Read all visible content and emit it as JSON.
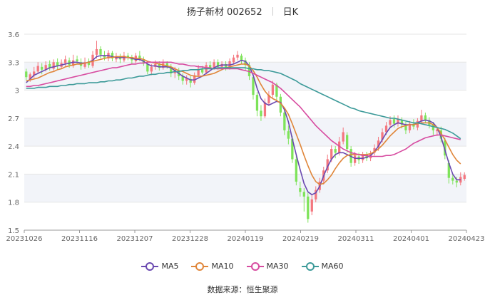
{
  "header": {
    "title": "扬子新材 002652",
    "period": "日K"
  },
  "source": "数据来源：恒生聚源",
  "colors": {
    "up": "#f4777f",
    "down": "#7ee35a",
    "band": "#f2f4f9",
    "grid": "#e6e6e6",
    "axis_text": "#666666"
  },
  "chart_data": {
    "type": "candlestick",
    "ylim": [
      1.5,
      3.6
    ],
    "yticks": [
      "1.5",
      "1.8",
      "2.1",
      "2.4",
      "2.7",
      "3",
      "3.3",
      "3.6"
    ],
    "xticks": [
      "20231026",
      "20231116",
      "20231207",
      "20231228",
      "20240119",
      "20240219",
      "20240311",
      "20240401",
      "20240423"
    ],
    "ohlc": [
      [
        3.2,
        3.14,
        3.23,
        3.11
      ],
      [
        3.12,
        3.17,
        3.19,
        3.09
      ],
      [
        3.16,
        3.2,
        3.25,
        3.13
      ],
      [
        3.2,
        3.26,
        3.3,
        3.18
      ],
      [
        3.25,
        3.22,
        3.29,
        3.17
      ],
      [
        3.22,
        3.27,
        3.31,
        3.2
      ],
      [
        3.28,
        3.24,
        3.32,
        3.21
      ],
      [
        3.23,
        3.3,
        3.33,
        3.21
      ],
      [
        3.3,
        3.26,
        3.34,
        3.22
      ],
      [
        3.25,
        3.29,
        3.33,
        3.23
      ],
      [
        3.29,
        3.33,
        3.37,
        3.26
      ],
      [
        3.32,
        3.27,
        3.35,
        3.24
      ],
      [
        3.26,
        3.32,
        3.38,
        3.24
      ],
      [
        3.33,
        3.31,
        3.37,
        3.28
      ],
      [
        3.3,
        3.26,
        3.34,
        3.22
      ],
      [
        3.25,
        3.3,
        3.35,
        3.23
      ],
      [
        3.31,
        3.27,
        3.34,
        3.24
      ],
      [
        3.26,
        3.38,
        3.42,
        3.24
      ],
      [
        3.38,
        3.44,
        3.53,
        3.34
      ],
      [
        3.44,
        3.38,
        3.47,
        3.34
      ],
      [
        3.37,
        3.35,
        3.42,
        3.32
      ],
      [
        3.34,
        3.4,
        3.43,
        3.31
      ],
      [
        3.4,
        3.34,
        3.42,
        3.31
      ],
      [
        3.33,
        3.36,
        3.4,
        3.3
      ],
      [
        3.36,
        3.33,
        3.39,
        3.29
      ],
      [
        3.32,
        3.37,
        3.41,
        3.3
      ],
      [
        3.37,
        3.35,
        3.4,
        3.32
      ],
      [
        3.34,
        3.32,
        3.38,
        3.28
      ],
      [
        3.31,
        3.37,
        3.4,
        3.29
      ],
      [
        3.37,
        3.34,
        3.42,
        3.31
      ],
      [
        3.33,
        3.29,
        3.36,
        3.26
      ],
      [
        3.28,
        3.2,
        3.31,
        3.17
      ],
      [
        3.2,
        3.25,
        3.28,
        3.16
      ],
      [
        3.25,
        3.28,
        3.32,
        3.22
      ],
      [
        3.28,
        3.24,
        3.31,
        3.21
      ],
      [
        3.24,
        3.29,
        3.33,
        3.22
      ],
      [
        3.29,
        3.26,
        3.31,
        3.23
      ],
      [
        3.25,
        3.18,
        3.28,
        3.14
      ],
      [
        3.18,
        3.22,
        3.25,
        3.13
      ],
      [
        3.21,
        3.15,
        3.24,
        3.11
      ],
      [
        3.15,
        3.1,
        3.18,
        3.06
      ],
      [
        3.1,
        3.13,
        3.16,
        3.06
      ],
      [
        3.12,
        3.08,
        3.15,
        3.03
      ],
      [
        3.08,
        3.16,
        3.19,
        3.06
      ],
      [
        3.16,
        3.23,
        3.27,
        3.14
      ],
      [
        3.23,
        3.19,
        3.26,
        3.17
      ],
      [
        3.19,
        3.27,
        3.3,
        3.17
      ],
      [
        3.27,
        3.24,
        3.31,
        3.22
      ],
      [
        3.24,
        3.3,
        3.33,
        3.22
      ],
      [
        3.3,
        3.25,
        3.33,
        3.22
      ],
      [
        3.25,
        3.28,
        3.31,
        3.23
      ],
      [
        3.28,
        3.24,
        3.31,
        3.21
      ],
      [
        3.24,
        3.31,
        3.34,
        3.22
      ],
      [
        3.3,
        3.35,
        3.38,
        3.28
      ],
      [
        3.35,
        3.38,
        3.42,
        3.32
      ],
      [
        3.37,
        3.32,
        3.39,
        3.28
      ],
      [
        3.32,
        3.27,
        3.35,
        3.21
      ],
      [
        3.27,
        3.15,
        3.3,
        3.11
      ],
      [
        3.14,
        2.95,
        3.17,
        2.9
      ],
      [
        2.95,
        2.78,
        2.98,
        2.72
      ],
      [
        2.78,
        2.72,
        2.84,
        2.67
      ],
      [
        2.72,
        2.87,
        2.91,
        2.7
      ],
      [
        2.86,
        2.95,
        2.99,
        2.83
      ],
      [
        2.95,
        3.06,
        3.1,
        2.92
      ],
      [
        3.06,
        2.93,
        3.08,
        2.89
      ],
      [
        2.93,
        2.76,
        2.96,
        2.72
      ],
      [
        2.76,
        2.57,
        2.8,
        2.52
      ],
      [
        2.56,
        2.48,
        2.62,
        2.42
      ],
      [
        2.48,
        2.26,
        2.51,
        2.22
      ],
      [
        2.26,
        2.02,
        2.3,
        1.98
      ],
      [
        1.95,
        1.91,
        2.02,
        1.86
      ],
      [
        1.91,
        1.86,
        1.95,
        1.7
      ],
      [
        1.86,
        1.62,
        1.9,
        1.58
      ],
      [
        1.7,
        1.83,
        1.88,
        1.66
      ],
      [
        1.83,
        1.93,
        1.97,
        1.8
      ],
      [
        1.93,
        2.02,
        2.06,
        1.9
      ],
      [
        2.03,
        2.14,
        2.18,
        1.99
      ],
      [
        2.14,
        2.26,
        2.31,
        2.11
      ],
      [
        2.26,
        2.37,
        2.41,
        2.23
      ],
      [
        2.37,
        2.33,
        2.4,
        2.27
      ],
      [
        2.33,
        2.45,
        2.5,
        2.3
      ],
      [
        2.45,
        2.55,
        2.6,
        2.42
      ],
      [
        2.52,
        2.37,
        2.55,
        2.33
      ],
      [
        2.37,
        2.22,
        2.4,
        2.18
      ],
      [
        2.22,
        2.3,
        2.34,
        2.19
      ],
      [
        2.29,
        2.25,
        2.33,
        2.21
      ],
      [
        2.25,
        2.31,
        2.34,
        2.22
      ],
      [
        2.31,
        2.27,
        2.34,
        2.24
      ],
      [
        2.27,
        2.32,
        2.35,
        2.24
      ],
      [
        2.33,
        2.38,
        2.42,
        2.3
      ],
      [
        2.39,
        2.46,
        2.5,
        2.35
      ],
      [
        2.47,
        2.55,
        2.59,
        2.44
      ],
      [
        2.55,
        2.62,
        2.66,
        2.52
      ],
      [
        2.63,
        2.68,
        2.72,
        2.6
      ],
      [
        2.69,
        2.64,
        2.73,
        2.6
      ],
      [
        2.64,
        2.69,
        2.73,
        2.61
      ],
      [
        2.68,
        2.63,
        2.71,
        2.59
      ],
      [
        2.63,
        2.57,
        2.66,
        2.53
      ],
      [
        2.57,
        2.64,
        2.67,
        2.54
      ],
      [
        2.64,
        2.61,
        2.69,
        2.58
      ],
      [
        2.6,
        2.67,
        2.7,
        2.57
      ],
      [
        2.67,
        2.73,
        2.79,
        2.64
      ],
      [
        2.73,
        2.68,
        2.76,
        2.65
      ],
      [
        2.68,
        2.63,
        2.71,
        2.59
      ],
      [
        2.63,
        2.57,
        2.66,
        2.52
      ],
      [
        2.56,
        2.58,
        2.61,
        2.51
      ],
      [
        2.57,
        2.48,
        2.61,
        2.44
      ],
      [
        2.46,
        2.3,
        2.49,
        2.26
      ],
      [
        2.22,
        2.06,
        2.25,
        2.0
      ],
      [
        2.06,
        2.03,
        2.1,
        1.99
      ],
      [
        2.03,
        2.01,
        2.07,
        1.96
      ],
      [
        2.01,
        2.07,
        2.12,
        1.98
      ],
      [
        2.05,
        2.09,
        2.12,
        2.03
      ]
    ],
    "series": [
      {
        "name": "MA5",
        "color": "#6a49b0",
        "values": [
          3.08,
          3.12,
          3.16,
          3.18,
          3.2,
          3.22,
          3.24,
          3.25,
          3.26,
          3.27,
          3.28,
          3.29,
          3.3,
          3.3,
          3.29,
          3.29,
          3.3,
          3.32,
          3.36,
          3.37,
          3.37,
          3.37,
          3.36,
          3.35,
          3.35,
          3.35,
          3.35,
          3.34,
          3.33,
          3.33,
          3.31,
          3.28,
          3.26,
          3.26,
          3.25,
          3.25,
          3.25,
          3.24,
          3.21,
          3.18,
          3.15,
          3.13,
          3.11,
          3.11,
          3.13,
          3.15,
          3.18,
          3.21,
          3.24,
          3.26,
          3.27,
          3.27,
          3.27,
          3.28,
          3.3,
          3.32,
          3.31,
          3.26,
          3.16,
          3.02,
          2.91,
          2.86,
          2.84,
          2.86,
          2.88,
          2.87,
          2.79,
          2.66,
          2.48,
          2.31,
          2.15,
          2.0,
          1.91,
          1.88,
          1.9,
          1.97,
          2.08,
          2.18,
          2.26,
          2.31,
          2.33,
          2.33,
          2.31,
          2.29,
          2.27,
          2.27,
          2.27,
          2.28,
          2.3,
          2.34,
          2.4,
          2.47,
          2.54,
          2.6,
          2.63,
          2.65,
          2.64,
          2.63,
          2.63,
          2.63,
          2.65,
          2.67,
          2.68,
          2.67,
          2.65,
          2.6,
          2.5,
          2.36,
          2.22,
          2.1,
          2.04,
          2.04
        ]
      },
      {
        "name": "MA10",
        "color": "#e0863a",
        "values": [
          3.1,
          3.11,
          3.12,
          3.13,
          3.15,
          3.17,
          3.19,
          3.2,
          3.22,
          3.23,
          3.25,
          3.26,
          3.27,
          3.28,
          3.28,
          3.29,
          3.3,
          3.31,
          3.32,
          3.33,
          3.34,
          3.35,
          3.35,
          3.36,
          3.36,
          3.36,
          3.35,
          3.35,
          3.34,
          3.34,
          3.33,
          3.31,
          3.3,
          3.29,
          3.28,
          3.27,
          3.26,
          3.25,
          3.23,
          3.21,
          3.2,
          3.18,
          3.16,
          3.15,
          3.15,
          3.15,
          3.16,
          3.17,
          3.18,
          3.2,
          3.22,
          3.24,
          3.25,
          3.26,
          3.27,
          3.28,
          3.28,
          3.26,
          3.21,
          3.14,
          3.06,
          2.99,
          2.94,
          2.91,
          2.89,
          2.86,
          2.81,
          2.74,
          2.64,
          2.53,
          2.42,
          2.3,
          2.19,
          2.09,
          2.02,
          1.99,
          2.0,
          2.04,
          2.09,
          2.16,
          2.22,
          2.27,
          2.3,
          2.31,
          2.31,
          2.31,
          2.31,
          2.31,
          2.32,
          2.34,
          2.37,
          2.41,
          2.46,
          2.51,
          2.55,
          2.59,
          2.61,
          2.62,
          2.63,
          2.63,
          2.64,
          2.65,
          2.65,
          2.65,
          2.63,
          2.6,
          2.54,
          2.47,
          2.39,
          2.31,
          2.25,
          2.21
        ]
      },
      {
        "name": "MA30",
        "color": "#d74ba0",
        "values": [
          3.04,
          3.04,
          3.05,
          3.05,
          3.06,
          3.07,
          3.08,
          3.09,
          3.1,
          3.11,
          3.12,
          3.13,
          3.14,
          3.15,
          3.16,
          3.17,
          3.18,
          3.19,
          3.2,
          3.21,
          3.22,
          3.23,
          3.24,
          3.24,
          3.25,
          3.26,
          3.27,
          3.28,
          3.28,
          3.29,
          3.29,
          3.3,
          3.3,
          3.3,
          3.3,
          3.3,
          3.3,
          3.3,
          3.29,
          3.28,
          3.28,
          3.27,
          3.26,
          3.26,
          3.25,
          3.25,
          3.24,
          3.24,
          3.23,
          3.23,
          3.23,
          3.23,
          3.23,
          3.23,
          3.23,
          3.22,
          3.21,
          3.2,
          3.18,
          3.16,
          3.14,
          3.12,
          3.1,
          3.08,
          3.05,
          3.02,
          2.98,
          2.94,
          2.9,
          2.86,
          2.82,
          2.77,
          2.72,
          2.67,
          2.62,
          2.58,
          2.54,
          2.5,
          2.46,
          2.43,
          2.4,
          2.37,
          2.35,
          2.33,
          2.32,
          2.31,
          2.3,
          2.3,
          2.29,
          2.29,
          2.29,
          2.29,
          2.3,
          2.3,
          2.31,
          2.33,
          2.35,
          2.37,
          2.4,
          2.43,
          2.45,
          2.47,
          2.49,
          2.5,
          2.51,
          2.52,
          2.52,
          2.51,
          2.5,
          2.49,
          2.48,
          2.47
        ]
      },
      {
        "name": "MA60",
        "color": "#3c9a99",
        "values": [
          3.02,
          3.02,
          3.02,
          3.03,
          3.03,
          3.03,
          3.04,
          3.04,
          3.04,
          3.05,
          3.05,
          3.06,
          3.06,
          3.07,
          3.07,
          3.07,
          3.08,
          3.08,
          3.08,
          3.09,
          3.09,
          3.1,
          3.1,
          3.11,
          3.11,
          3.12,
          3.13,
          3.13,
          3.14,
          3.15,
          3.15,
          3.16,
          3.17,
          3.17,
          3.18,
          3.18,
          3.19,
          3.19,
          3.2,
          3.2,
          3.21,
          3.21,
          3.22,
          3.22,
          3.22,
          3.23,
          3.23,
          3.23,
          3.23,
          3.24,
          3.24,
          3.24,
          3.24,
          3.24,
          3.24,
          3.24,
          3.24,
          3.23,
          3.23,
          3.22,
          3.22,
          3.21,
          3.21,
          3.2,
          3.19,
          3.18,
          3.16,
          3.14,
          3.12,
          3.1,
          3.07,
          3.05,
          3.03,
          3.01,
          2.99,
          2.97,
          2.95,
          2.93,
          2.91,
          2.89,
          2.87,
          2.85,
          2.83,
          2.81,
          2.8,
          2.78,
          2.77,
          2.76,
          2.75,
          2.74,
          2.73,
          2.72,
          2.71,
          2.7,
          2.7,
          2.69,
          2.68,
          2.67,
          2.66,
          2.65,
          2.65,
          2.64,
          2.63,
          2.62,
          2.61,
          2.6,
          2.59,
          2.58,
          2.56,
          2.54,
          2.51,
          2.48
        ]
      }
    ]
  }
}
